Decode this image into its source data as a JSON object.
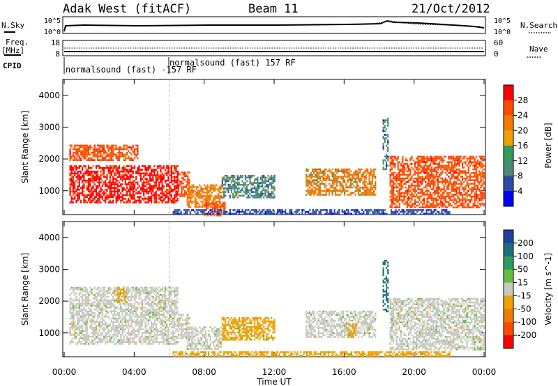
{
  "header": {
    "site": "Adak West (fitACF)",
    "beam": "Beam 11",
    "date": "21/Oct/2012"
  },
  "small_panels": {
    "nsky_label": "N.Sky",
    "nsky_ticks": [
      "10^5",
      "10^0"
    ],
    "nsearch_label": "N.Search",
    "nsearch_ticks": [
      "10^5",
      "10^0"
    ],
    "freq_label": "Freq.",
    "freq_unit": "[MHz]",
    "freq_ticks": [
      "18",
      "8"
    ],
    "nave_label": "Nave",
    "nave_ticks": [
      "60",
      "0"
    ],
    "cpid_label": "CPID",
    "cpid_entries": [
      {
        "time": "00:00",
        "text": "normalsound (fast) -157 RF"
      },
      {
        "time": "06:00",
        "text": "normalsound (fast) 157 RF"
      }
    ]
  },
  "chart_data": [
    {
      "type": "heatmap",
      "title": "",
      "xlabel": "Time UT",
      "ylabel": "Slant Range [km]",
      "xlim": [
        "00:00",
        "24:00"
      ],
      "ylim": [
        250,
        4500
      ],
      "x_ticks": [
        "00:00",
        "04:00",
        "08:00",
        "12:00",
        "16:00",
        "20:00",
        "00:00"
      ],
      "y_ticks": [
        1000,
        2000,
        3000,
        4000
      ],
      "colorbar": {
        "label": "Power [dB]",
        "ticks": [
          4,
          8,
          12,
          16,
          20,
          24,
          28
        ],
        "range": [
          0,
          30
        ],
        "colors": [
          "#0000ff",
          "#2b4aa8",
          "#4a8a74",
          "#2e9a5c",
          "#f0a000",
          "#f27800",
          "#ff4800",
          "#ff0000"
        ]
      },
      "regions": [
        {
          "t0": 0.3,
          "t1": 6.5,
          "r0": 650,
          "r1": 1800,
          "value": 27
        },
        {
          "t0": 0.3,
          "t1": 4.2,
          "r0": 1950,
          "r1": 2450,
          "value": 26
        },
        {
          "t0": 6.5,
          "t1": 7.2,
          "r0": 850,
          "r1": 1600,
          "value": 26
        },
        {
          "t0": 7.0,
          "t1": 9.0,
          "r0": 500,
          "r1": 1200,
          "value": 22
        },
        {
          "t0": 8.0,
          "t1": 9.2,
          "r0": 250,
          "r1": 650,
          "value": 25
        },
        {
          "t0": 9.0,
          "t1": 12.0,
          "r0": 800,
          "r1": 1500,
          "value": 11
        },
        {
          "t0": 13.8,
          "t1": 17.8,
          "r0": 900,
          "r1": 1700,
          "value": 19
        },
        {
          "t0": 18.2,
          "t1": 18.5,
          "r0": 1700,
          "r1": 3300,
          "value": 8
        },
        {
          "t0": 18.6,
          "t1": 24.0,
          "r0": 500,
          "r1": 2100,
          "value": 26
        },
        {
          "t0": 6.2,
          "t1": 22.0,
          "r0": 250,
          "r1": 420,
          "value": 7
        }
      ]
    },
    {
      "type": "heatmap",
      "title": "",
      "xlabel": "Time UT",
      "ylabel": "Slant Range [km]",
      "xlim": [
        "00:00",
        "24:00"
      ],
      "ylim": [
        250,
        4500
      ],
      "x_ticks": [
        "00:00",
        "04:00",
        "08:00",
        "12:00",
        "16:00",
        "20:00",
        "00:00"
      ],
      "y_ticks": [
        1000,
        2000,
        3000,
        4000
      ],
      "colorbar": {
        "label": "Velocity [m s^-1]",
        "ticks": [
          200,
          100,
          50,
          15,
          -15,
          -50,
          -100,
          -200
        ],
        "colors": [
          "#2040a0",
          "#1e6e7a",
          "#2e9a5c",
          "#5fbf3a",
          "#c8c8c0",
          "#f0a000",
          "#f27800",
          "#ff4800",
          "#ff0000"
        ]
      },
      "regions": [
        {
          "t0": 0.3,
          "t1": 6.5,
          "r0": 650,
          "r1": 2450,
          "value": 0
        },
        {
          "t0": 3.0,
          "t1": 3.6,
          "r0": 1950,
          "r1": 2450,
          "value": -40
        },
        {
          "t0": 6.5,
          "t1": 7.2,
          "r0": 850,
          "r1": 1600,
          "value": 0
        },
        {
          "t0": 7.0,
          "t1": 9.0,
          "r0": 500,
          "r1": 1200,
          "value": 0
        },
        {
          "t0": 9.0,
          "t1": 12.0,
          "r0": 800,
          "r1": 1500,
          "value": -40
        },
        {
          "t0": 13.8,
          "t1": 17.8,
          "r0": 900,
          "r1": 1700,
          "value": 0
        },
        {
          "t0": 16.2,
          "t1": 16.7,
          "r0": 900,
          "r1": 1300,
          "value": -40
        },
        {
          "t0": 18.2,
          "t1": 18.5,
          "r0": 1700,
          "r1": 3300,
          "value": 150
        },
        {
          "t0": 18.6,
          "t1": 24.0,
          "r0": 500,
          "r1": 2100,
          "value": 0
        },
        {
          "t0": 6.2,
          "t1": 22.0,
          "r0": 250,
          "r1": 420,
          "value": -40
        }
      ]
    }
  ]
}
